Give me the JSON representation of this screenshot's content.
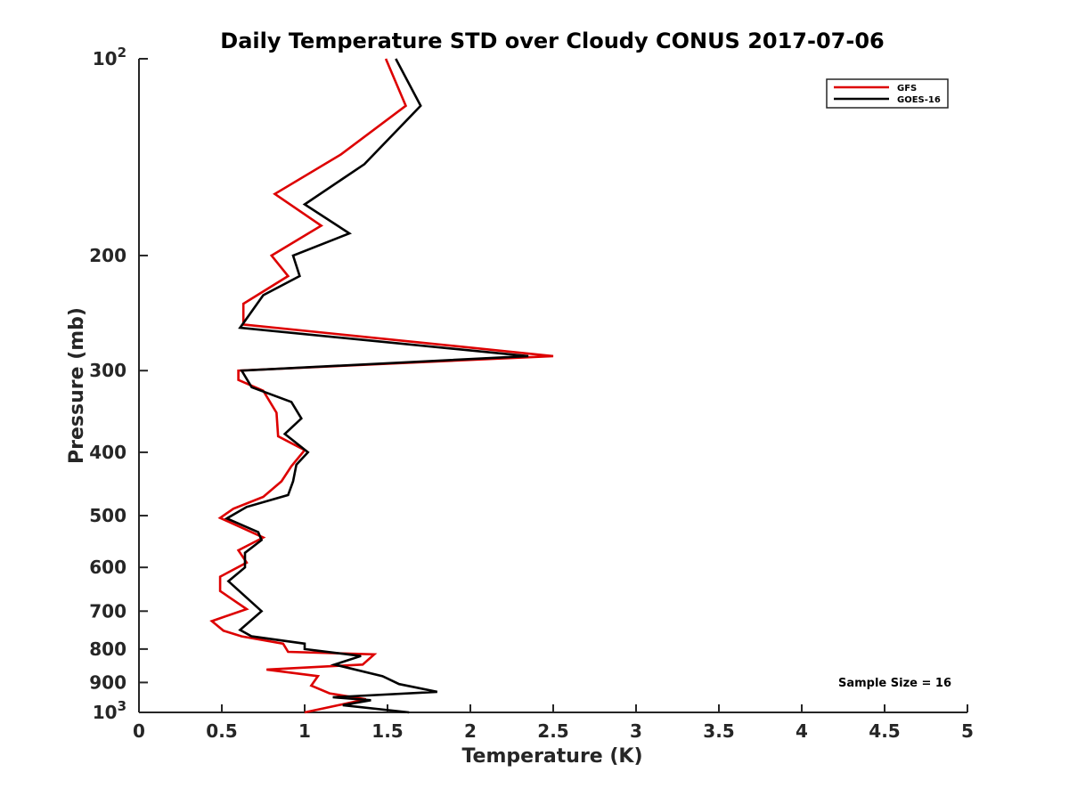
{
  "chart_data": {
    "type": "line",
    "title": "Daily Temperature STD over Cloudy CONUS 2017-07-06",
    "xlabel": "Temperature (K)",
    "ylabel": "Pressure (mb)",
    "xlim": [
      0,
      5
    ],
    "ylim": [
      100,
      1000
    ],
    "yscale": "log",
    "yreversed": true,
    "grid": false,
    "legend_position": "top-right",
    "x_ticks": [
      0,
      0.5,
      1,
      1.5,
      2,
      2.5,
      3,
      3.5,
      4,
      4.5,
      5
    ],
    "x_tick_labels": [
      "0",
      "0.5",
      "1",
      "1.5",
      "2",
      "2.5",
      "3",
      "3.5",
      "4",
      "4.5",
      "5"
    ],
    "y_ticks": [
      {
        "value": 100,
        "base": "10",
        "exp": "2"
      },
      {
        "value": 200,
        "label": "200"
      },
      {
        "value": 300,
        "label": "300"
      },
      {
        "value": 400,
        "label": "400"
      },
      {
        "value": 500,
        "label": "500"
      },
      {
        "value": 600,
        "label": "600"
      },
      {
        "value": 700,
        "label": "700"
      },
      {
        "value": 800,
        "label": "800"
      },
      {
        "value": 900,
        "label": "900"
      },
      {
        "value": 1000,
        "base": "10",
        "exp": "3"
      }
    ],
    "series": [
      {
        "name": "GFS",
        "color": "#dd0000",
        "points": [
          [
            1.49,
            100
          ],
          [
            1.61,
            118
          ],
          [
            1.22,
            140
          ],
          [
            0.82,
            161
          ],
          [
            1.1,
            180
          ],
          [
            0.8,
            200
          ],
          [
            0.9,
            215
          ],
          [
            0.63,
            237
          ],
          [
            0.63,
            255
          ],
          [
            2.5,
            285
          ],
          [
            0.6,
            300
          ],
          [
            0.6,
            310
          ],
          [
            0.75,
            322
          ],
          [
            0.83,
            348
          ],
          [
            0.84,
            378
          ],
          [
            1.0,
            397
          ],
          [
            0.92,
            420
          ],
          [
            0.86,
            443
          ],
          [
            0.75,
            468
          ],
          [
            0.57,
            488
          ],
          [
            0.49,
            504
          ],
          [
            0.75,
            540
          ],
          [
            0.6,
            565
          ],
          [
            0.65,
            590
          ],
          [
            0.49,
            620
          ],
          [
            0.49,
            652
          ],
          [
            0.65,
            695
          ],
          [
            0.44,
            725
          ],
          [
            0.51,
            750
          ],
          [
            0.62,
            765
          ],
          [
            0.87,
            785
          ],
          [
            0.9,
            808
          ],
          [
            1.42,
            815
          ],
          [
            1.35,
            845
          ],
          [
            0.77,
            860
          ],
          [
            1.08,
            880
          ],
          [
            1.04,
            910
          ],
          [
            1.15,
            935
          ],
          [
            1.37,
            955
          ],
          [
            1.0,
            1000
          ]
        ]
      },
      {
        "name": "GOES-16",
        "color": "#000000",
        "points": [
          [
            1.55,
            100
          ],
          [
            1.7,
            118
          ],
          [
            1.36,
            145
          ],
          [
            1.0,
            167
          ],
          [
            1.27,
            185
          ],
          [
            0.93,
            200
          ],
          [
            0.97,
            215
          ],
          [
            0.75,
            230
          ],
          [
            0.61,
            258
          ],
          [
            2.35,
            285
          ],
          [
            0.62,
            300
          ],
          [
            0.68,
            318
          ],
          [
            0.92,
            335
          ],
          [
            0.98,
            355
          ],
          [
            0.88,
            375
          ],
          [
            1.02,
            400
          ],
          [
            0.95,
            418
          ],
          [
            0.93,
            443
          ],
          [
            0.9,
            465
          ],
          [
            0.65,
            485
          ],
          [
            0.53,
            505
          ],
          [
            0.72,
            530
          ],
          [
            0.74,
            545
          ],
          [
            0.64,
            570
          ],
          [
            0.64,
            600
          ],
          [
            0.54,
            630
          ],
          [
            0.74,
            700
          ],
          [
            0.61,
            748
          ],
          [
            0.68,
            765
          ],
          [
            1.0,
            785
          ],
          [
            1.0,
            800
          ],
          [
            1.34,
            820
          ],
          [
            1.18,
            845
          ],
          [
            1.47,
            880
          ],
          [
            1.57,
            905
          ],
          [
            1.8,
            930
          ],
          [
            1.17,
            948
          ],
          [
            1.4,
            958
          ],
          [
            1.23,
            975
          ],
          [
            1.63,
            1000
          ]
        ]
      }
    ],
    "annotation": "Sample Size = 16"
  }
}
